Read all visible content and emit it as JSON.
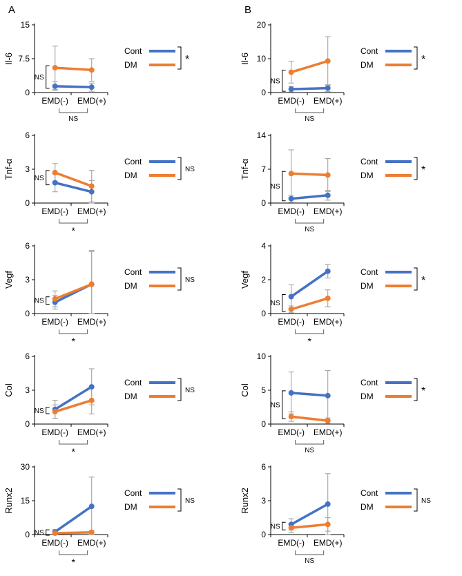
{
  "panels": [
    {
      "label": "A"
    },
    {
      "label": "B"
    }
  ],
  "colors": {
    "cont": "#4472C4",
    "dm": "#ED7D31",
    "error_bar": "#A9A9A9",
    "axis": "#000000",
    "bracket": "#595959"
  },
  "chart_data": [
    {
      "type": "line",
      "panel": "A",
      "ylabel": "Il-6",
      "ylim": [
        0,
        15
      ],
      "yticks": [
        0,
        7.5,
        15
      ],
      "categories": [
        "EMD(-)",
        "EMD(+)"
      ],
      "series": [
        {
          "name": "Cont",
          "color": "#4472C4",
          "values": [
            1.4,
            1.2
          ],
          "errors": [
            1.0,
            0.9
          ]
        },
        {
          "name": "DM",
          "color": "#ED7D31",
          "values": [
            5.5,
            5.0
          ],
          "errors": [
            4.8,
            2.5
          ]
        }
      ],
      "legend_significance": "*",
      "left_bracket_label": "NS",
      "bottom_bracket_label": "NS"
    },
    {
      "type": "line",
      "panel": "A",
      "ylabel": "Tnf-α",
      "ylim": [
        0,
        6
      ],
      "yticks": [
        0,
        3,
        6
      ],
      "categories": [
        "EMD(-)",
        "EMD(+)"
      ],
      "series": [
        {
          "name": "Cont",
          "color": "#4472C4",
          "values": [
            1.8,
            1.0
          ],
          "errors": [
            0.8,
            1.0
          ]
        },
        {
          "name": "DM",
          "color": "#ED7D31",
          "values": [
            2.7,
            1.5
          ],
          "errors": [
            0.8,
            1.4
          ]
        }
      ],
      "legend_significance": "NS",
      "left_bracket_label": "NS",
      "bottom_bracket_label": "*"
    },
    {
      "type": "line",
      "panel": "A",
      "ylabel": "Vegf",
      "ylim": [
        0,
        6
      ],
      "yticks": [
        0,
        3,
        6
      ],
      "categories": [
        "EMD(-)",
        "EMD(+)"
      ],
      "series": [
        {
          "name": "Cont",
          "color": "#4472C4",
          "values": [
            1.0,
            2.6
          ],
          "errors": [
            0.6,
            3.0
          ]
        },
        {
          "name": "DM",
          "color": "#ED7D31",
          "values": [
            1.3,
            2.6
          ],
          "errors": [
            0.7,
            2.9
          ]
        }
      ],
      "legend_significance": "NS",
      "left_bracket_label": "NS",
      "bottom_bracket_label": "*"
    },
    {
      "type": "line",
      "panel": "A",
      "ylabel": "Col",
      "ylim": [
        0,
        6
      ],
      "yticks": [
        0,
        3,
        6
      ],
      "categories": [
        "EMD(-)",
        "EMD(+)"
      ],
      "series": [
        {
          "name": "Cont",
          "color": "#4472C4",
          "values": [
            1.3,
            3.3
          ],
          "errors": [
            0.8,
            1.6
          ]
        },
        {
          "name": "DM",
          "color": "#ED7D31",
          "values": [
            1.1,
            2.1
          ],
          "errors": [
            0.6,
            1.2
          ]
        }
      ],
      "legend_significance": "NS",
      "left_bracket_label": "NS",
      "bottom_bracket_label": "*"
    },
    {
      "type": "line",
      "panel": "A",
      "ylabel": "Runx2",
      "ylim": [
        0,
        30
      ],
      "yticks": [
        0,
        15,
        30
      ],
      "categories": [
        "EMD(-)",
        "EMD(+)"
      ],
      "series": [
        {
          "name": "Cont",
          "color": "#4472C4",
          "values": [
            1.2,
            12.5
          ],
          "errors": [
            1.0,
            13.0
          ]
        },
        {
          "name": "DM",
          "color": "#ED7D31",
          "values": [
            0.6,
            1.0
          ],
          "errors": [
            0.5,
            0.8
          ]
        }
      ],
      "legend_significance": "NS",
      "left_bracket_label": "NS",
      "bottom_bracket_label": "*"
    },
    {
      "type": "line",
      "panel": "B",
      "ylabel": "Il-6",
      "ylim": [
        0,
        20
      ],
      "yticks": [
        0,
        10,
        20
      ],
      "categories": [
        "EMD(-)",
        "EMD(+)"
      ],
      "series": [
        {
          "name": "Cont",
          "color": "#4472C4",
          "values": [
            1.0,
            1.3
          ],
          "errors": [
            0.8,
            1.0
          ]
        },
        {
          "name": "DM",
          "color": "#ED7D31",
          "values": [
            6.0,
            9.3
          ],
          "errors": [
            3.2,
            7.2
          ]
        }
      ],
      "legend_significance": "*",
      "left_bracket_label": "NS",
      "bottom_bracket_label": "NS"
    },
    {
      "type": "line",
      "panel": "B",
      "ylabel": "Tnf-α",
      "ylim": [
        0,
        14
      ],
      "yticks": [
        0,
        7,
        14
      ],
      "categories": [
        "EMD(-)",
        "EMD(+)"
      ],
      "series": [
        {
          "name": "Cont",
          "color": "#4472C4",
          "values": [
            0.9,
            1.6
          ],
          "errors": [
            0.7,
            1.0
          ]
        },
        {
          "name": "DM",
          "color": "#ED7D31",
          "values": [
            6.1,
            5.8
          ],
          "errors": [
            4.9,
            3.4
          ]
        }
      ],
      "legend_significance": "*",
      "left_bracket_label": "NS",
      "bottom_bracket_label": "NS"
    },
    {
      "type": "line",
      "panel": "B",
      "ylabel": "Vegf",
      "ylim": [
        0,
        4
      ],
      "yticks": [
        0,
        2,
        4
      ],
      "categories": [
        "EMD(-)",
        "EMD(+)"
      ],
      "series": [
        {
          "name": "Cont",
          "color": "#4472C4",
          "values": [
            1.0,
            2.5
          ],
          "errors": [
            0.7,
            0.4
          ]
        },
        {
          "name": "DM",
          "color": "#ED7D31",
          "values": [
            0.25,
            0.9
          ],
          "errors": [
            0.2,
            0.5
          ]
        }
      ],
      "legend_significance": "*",
      "left_bracket_label": "NS",
      "bottom_bracket_label": "*"
    },
    {
      "type": "line",
      "panel": "B",
      "ylabel": "Col",
      "ylim": [
        0,
        10
      ],
      "yticks": [
        0,
        5,
        10
      ],
      "categories": [
        "EMD(-)",
        "EMD(+)"
      ],
      "series": [
        {
          "name": "Cont",
          "color": "#4472C4",
          "values": [
            4.6,
            4.2
          ],
          "errors": [
            3.1,
            3.7
          ]
        },
        {
          "name": "DM",
          "color": "#ED7D31",
          "values": [
            1.1,
            0.5
          ],
          "errors": [
            0.7,
            0.4
          ]
        }
      ],
      "legend_significance": "*",
      "left_bracket_label": "NS",
      "bottom_bracket_label": "NS"
    },
    {
      "type": "line",
      "panel": "B",
      "ylabel": "Runx2",
      "ylim": [
        0,
        6
      ],
      "yticks": [
        0,
        3,
        6
      ],
      "categories": [
        "EMD(-)",
        "EMD(+)"
      ],
      "series": [
        {
          "name": "Cont",
          "color": "#4472C4",
          "values": [
            0.9,
            2.7
          ],
          "errors": [
            0.5,
            2.7
          ]
        },
        {
          "name": "DM",
          "color": "#ED7D31",
          "values": [
            0.6,
            0.9
          ],
          "errors": [
            0.4,
            0.6
          ]
        }
      ],
      "legend_significance": "NS",
      "left_bracket_label": "NS",
      "bottom_bracket_label": "NS"
    }
  ]
}
